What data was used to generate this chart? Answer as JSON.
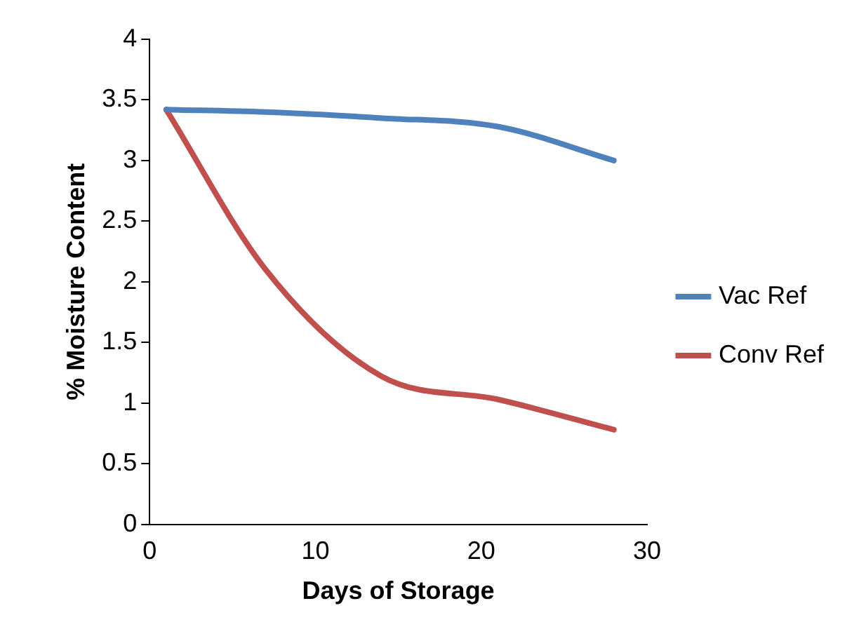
{
  "chart_data": {
    "type": "line",
    "xlabel": "Days of Storage",
    "ylabel": "% Moisture Content",
    "x": [
      1,
      7,
      14,
      21,
      28
    ],
    "series": [
      {
        "name": "Vac Ref",
        "color": "#4f81bd",
        "values": [
          3.42,
          3.4,
          3.35,
          3.28,
          3.0
        ]
      },
      {
        "name": "Conv Ref",
        "color": "#c0504d",
        "values": [
          3.42,
          2.1,
          1.22,
          1.03,
          0.78
        ]
      }
    ],
    "xlim": [
      0,
      30
    ],
    "xticks": [
      0,
      10,
      20,
      30
    ],
    "ylim": [
      0,
      4
    ],
    "yticks": [
      0,
      0.5,
      1,
      1.5,
      2,
      2.5,
      3,
      3.5,
      4
    ],
    "grid": false,
    "legend": "right",
    "marker": "none",
    "line_style": "solid"
  }
}
